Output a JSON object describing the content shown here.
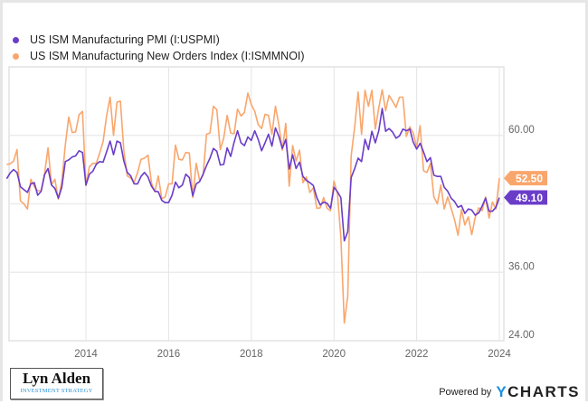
{
  "chart_data": {
    "type": "line",
    "title": "",
    "xlabel": "",
    "ylabel": "",
    "ylim": [
      24,
      72
    ],
    "y_ticks": [
      "24.00",
      "36.00",
      "60.00"
    ],
    "x_ticks": [
      "2014",
      "2016",
      "2018",
      "2020",
      "2022",
      "2024"
    ],
    "grid": true,
    "legend_placement": "top-left",
    "x": [
      "2012-02",
      "2012-03",
      "2012-04",
      "2012-05",
      "2012-06",
      "2012-07",
      "2012-08",
      "2012-09",
      "2012-10",
      "2012-11",
      "2012-12",
      "2013-01",
      "2013-02",
      "2013-03",
      "2013-04",
      "2013-05",
      "2013-06",
      "2013-07",
      "2013-08",
      "2013-09",
      "2013-10",
      "2013-11",
      "2013-12",
      "2014-01",
      "2014-02",
      "2014-03",
      "2014-04",
      "2014-05",
      "2014-06",
      "2014-07",
      "2014-08",
      "2014-09",
      "2014-10",
      "2014-11",
      "2014-12",
      "2015-01",
      "2015-02",
      "2015-03",
      "2015-04",
      "2015-05",
      "2015-06",
      "2015-07",
      "2015-08",
      "2015-09",
      "2015-10",
      "2015-11",
      "2015-12",
      "2016-01",
      "2016-02",
      "2016-03",
      "2016-04",
      "2016-05",
      "2016-06",
      "2016-07",
      "2016-08",
      "2016-09",
      "2016-10",
      "2016-11",
      "2016-12",
      "2017-01",
      "2017-02",
      "2017-03",
      "2017-04",
      "2017-05",
      "2017-06",
      "2017-07",
      "2017-08",
      "2017-09",
      "2017-10",
      "2017-11",
      "2017-12",
      "2018-01",
      "2018-02",
      "2018-03",
      "2018-04",
      "2018-05",
      "2018-06",
      "2018-07",
      "2018-08",
      "2018-09",
      "2018-10",
      "2018-11",
      "2018-12",
      "2019-01",
      "2019-02",
      "2019-03",
      "2019-04",
      "2019-05",
      "2019-06",
      "2019-07",
      "2019-08",
      "2019-09",
      "2019-10",
      "2019-11",
      "2019-12",
      "2020-01",
      "2020-02",
      "2020-03",
      "2020-04",
      "2020-05",
      "2020-06",
      "2020-07",
      "2020-08",
      "2020-09",
      "2020-10",
      "2020-11",
      "2020-12",
      "2021-01",
      "2021-02",
      "2021-03",
      "2021-04",
      "2021-05",
      "2021-06",
      "2021-07",
      "2021-08",
      "2021-09",
      "2021-10",
      "2021-11",
      "2021-12",
      "2022-01",
      "2022-02",
      "2022-03",
      "2022-04",
      "2022-05",
      "2022-06",
      "2022-07",
      "2022-08",
      "2022-09",
      "2022-10",
      "2022-11",
      "2022-12",
      "2023-01",
      "2023-02",
      "2023-03",
      "2023-04",
      "2023-05",
      "2023-06",
      "2023-07",
      "2023-08",
      "2023-09",
      "2023-10",
      "2023-11",
      "2023-12",
      "2024-01"
    ],
    "series": [
      {
        "name": "US ISM Manufacturing PMI (I:USPMI)",
        "color": "#6a3dc9",
        "last_label": "49.10",
        "values": [
          52.4,
          53.4,
          54.0,
          53.5,
          51.0,
          50.5,
          50.0,
          51.5,
          51.7,
          49.5,
          50.2,
          53.1,
          54.2,
          51.3,
          50.7,
          49.0,
          50.9,
          55.4,
          55.7,
          56.2,
          56.4,
          57.3,
          57.0,
          51.3,
          53.2,
          53.7,
          54.9,
          55.4,
          55.3,
          57.1,
          59.0,
          56.6,
          59.0,
          58.7,
          55.5,
          53.5,
          52.9,
          51.5,
          51.5,
          52.8,
          53.5,
          52.7,
          51.1,
          50.2,
          50.1,
          48.6,
          48.2,
          48.2,
          49.5,
          51.8,
          50.8,
          51.3,
          53.2,
          52.6,
          49.4,
          51.5,
          51.9,
          53.2,
          54.7,
          56.0,
          57.7,
          57.2,
          54.8,
          54.9,
          57.8,
          56.3,
          58.8,
          60.8,
          58.7,
          58.2,
          59.7,
          59.1,
          60.8,
          59.3,
          57.3,
          58.7,
          60.2,
          58.1,
          61.3,
          59.8,
          57.7,
          59.3,
          54.1,
          56.6,
          54.2,
          55.3,
          52.8,
          52.1,
          51.7,
          51.2,
          49.1,
          47.8,
          48.3,
          48.1,
          47.2,
          50.9,
          50.1,
          49.1,
          41.5,
          43.1,
          52.6,
          54.2,
          56.0,
          55.4,
          59.3,
          57.5,
          60.7,
          58.7,
          60.8,
          64.7,
          60.7,
          61.2,
          60.6,
          59.5,
          59.9,
          61.1,
          60.8,
          61.1,
          58.8,
          57.6,
          58.6,
          57.1,
          55.4,
          56.1,
          53.0,
          52.8,
          52.8,
          50.9,
          50.2,
          49.0,
          48.4,
          47.4,
          47.7,
          46.3,
          47.1,
          46.9,
          46.0,
          46.4,
          47.6,
          49.0,
          46.7,
          46.7,
          47.4,
          49.1
        ]
      },
      {
        "name": "US ISM Manufacturing New Orders Index (I:ISMMNOI)",
        "color": "#f9a66c",
        "last_label": "52.50",
        "values": [
          54.9,
          55.0,
          55.5,
          57.5,
          48.5,
          48.0,
          47.1,
          52.3,
          51.0,
          50.3,
          50.3,
          53.3,
          57.8,
          51.4,
          52.3,
          48.8,
          51.9,
          58.3,
          63.2,
          60.5,
          60.6,
          63.6,
          64.2,
          51.2,
          54.5,
          55.1,
          55.1,
          56.9,
          58.9,
          63.4,
          66.7,
          60.0,
          65.8,
          66.0,
          57.3,
          52.9,
          52.5,
          51.8,
          53.5,
          55.8,
          56.0,
          56.5,
          51.7,
          50.1,
          52.9,
          48.9,
          49.2,
          51.5,
          51.5,
          58.3,
          55.8,
          55.7,
          57.0,
          56.9,
          49.1,
          55.1,
          52.1,
          53.0,
          60.2,
          60.4,
          65.1,
          64.5,
          57.5,
          59.5,
          63.5,
          60.4,
          60.3,
          64.6,
          63.4,
          64.0,
          67.4,
          65.4,
          64.2,
          61.9,
          61.2,
          63.7,
          63.5,
          60.2,
          65.1,
          61.8,
          57.4,
          62.1,
          51.1,
          58.2,
          55.5,
          57.4,
          51.7,
          52.7,
          50.0,
          50.8,
          47.2,
          47.3,
          49.1,
          47.2,
          46.8,
          52.0,
          49.8,
          42.2,
          27.1,
          31.8,
          56.4,
          61.5,
          67.6,
          60.2,
          67.9,
          65.1,
          67.9,
          61.1,
          64.8,
          68.0,
          64.3,
          67.0,
          66.0,
          64.9,
          66.7,
          66.7,
          59.8,
          61.5,
          60.4,
          57.9,
          61.7,
          53.8,
          53.5,
          55.1,
          49.2,
          48.0,
          51.3,
          47.1,
          49.2,
          47.2,
          45.2,
          42.5,
          47.0,
          44.3,
          45.7,
          42.6,
          45.6,
          47.3,
          46.8,
          49.2,
          45.5,
          48.3,
          47.1,
          52.5
        ]
      }
    ]
  },
  "legend": {
    "items": [
      {
        "label": "US ISM Manufacturing PMI (I:USPMI)",
        "color": "#6a3dc9"
      },
      {
        "label": "US ISM Manufacturing New Orders Index (I:ISMMNOI)",
        "color": "#f9a66c"
      }
    ]
  },
  "branding": {
    "logo_main": "Lyn Alden",
    "logo_sub": "INVESTMENT STRATEGY",
    "powered_by": "Powered by",
    "ycharts_y": "Y",
    "ycharts_rest": "CHARTS"
  }
}
